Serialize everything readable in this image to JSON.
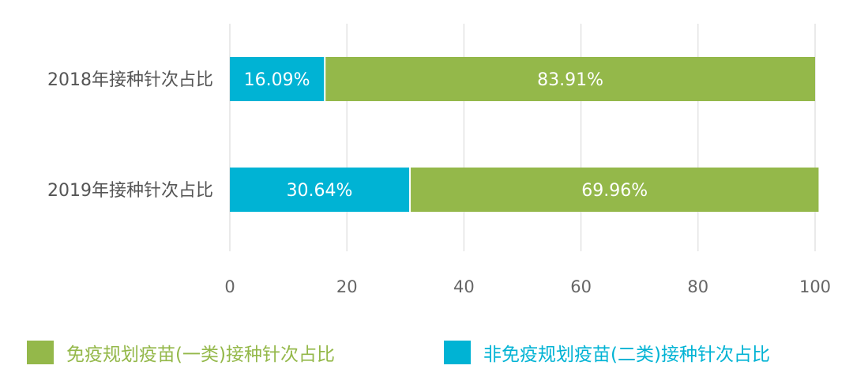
{
  "chart_data": {
    "type": "bar",
    "orientation": "horizontal",
    "stacked": true,
    "categories": [
      "2018年接种针次占比",
      "2019年接种针次占比"
    ],
    "series": [
      {
        "name": "非免疫规划疫苗(二类)接种针次占比",
        "color": "#00b3d4",
        "values": [
          16.09,
          30.64
        ],
        "labels": [
          "16.09%",
          "30.64%"
        ]
      },
      {
        "name": "免疫规划疫苗(一类)接种针次占比",
        "color": "#94b84a",
        "values": [
          83.91,
          69.96
        ],
        "labels": [
          "83.91%",
          "69.96%"
        ]
      }
    ],
    "xlim": [
      0,
      100
    ],
    "xticks": [
      0,
      20,
      40,
      60,
      80,
      100
    ],
    "xtick_labels": [
      "0",
      "20",
      "40",
      "60",
      "80",
      "100"
    ],
    "grid": true,
    "legend_position": "bottom",
    "title": "",
    "xlabel": "",
    "ylabel": ""
  },
  "legend": {
    "items": [
      {
        "label": "免疫规划疫苗(一类)接种针次占比",
        "color": "#94b84a"
      },
      {
        "label": "非免疫规划疫苗(二类)接种针次占比",
        "color": "#00b3d4"
      }
    ]
  },
  "colors": {
    "grid": "#dddddd",
    "axis_text": "#666666",
    "category_text": "#555555"
  }
}
